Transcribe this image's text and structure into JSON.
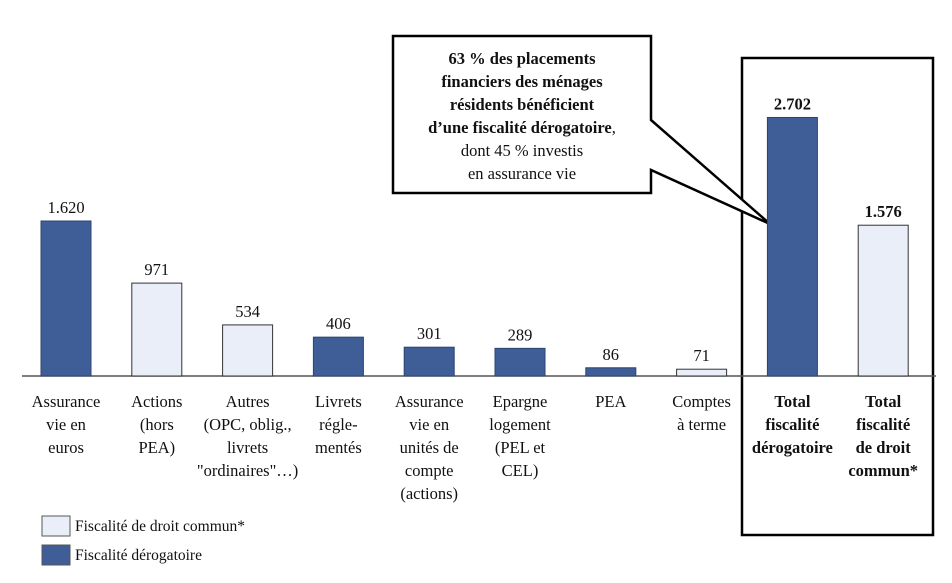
{
  "chart_data": {
    "type": "bar",
    "categories": [
      [
        "Assurance",
        "vie en",
        "euros"
      ],
      [
        "Actions",
        "(hors",
        "PEA)"
      ],
      [
        "Autres",
        "(OPC, oblig.,",
        "livrets",
        "\"ordinaires\"…)"
      ],
      [
        "Livrets",
        "régle-",
        "mentés"
      ],
      [
        "Assurance",
        "vie en",
        "unités de",
        "compte",
        "(actions)"
      ],
      [
        "Epargne",
        "logement",
        "(PEL et",
        "CEL)"
      ],
      [
        "PEA"
      ],
      [
        "Comptes",
        "à terme"
      ],
      [
        "Total",
        "fiscalité",
        "dérogatoire"
      ],
      [
        "Total",
        "fiscalité",
        "de droit",
        "commun*"
      ]
    ],
    "series": [
      {
        "name": "Fiscalité de droit commun*",
        "color": "#e9eef8",
        "values": [
          null,
          971,
          534,
          null,
          null,
          null,
          null,
          71,
          null,
          1576
        ],
        "value_labels": [
          null,
          "971",
          "534",
          null,
          null,
          null,
          null,
          "71",
          null,
          "1.576"
        ]
      },
      {
        "name": "Fiscalité dérogatoire",
        "color": "#3f5e98",
        "values": [
          1620,
          null,
          null,
          406,
          301,
          289,
          86,
          null,
          2702,
          null
        ],
        "value_labels": [
          "1.620",
          null,
          null,
          "406",
          "301",
          "289",
          "86",
          null,
          "2.702",
          null
        ]
      }
    ],
    "annotation": {
      "bold": [
        "63 % des placements",
        "financiers des ménages",
        "résidents bénéficient",
        "d’une fiscalité dérogatoire"
      ],
      "regular": [
        ",",
        "dont 45 % investis",
        "en assurance vie"
      ]
    }
  }
}
